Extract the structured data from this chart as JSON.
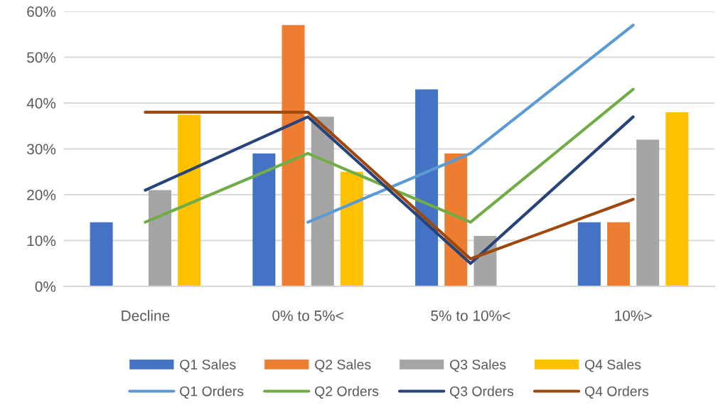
{
  "chart_data": {
    "type": "bar",
    "categories": [
      "Decline",
      "0% to 5%<",
      "5% to 10%<",
      "10%>"
    ],
    "series": [
      {
        "name": "Q1 Sales",
        "color": "#4472c4",
        "values": [
          14,
          29,
          43,
          14
        ]
      },
      {
        "name": "Q2 Sales",
        "color": "#ed7d31",
        "values": [
          0,
          57,
          29,
          14
        ]
      },
      {
        "name": "Q3 Sales",
        "color": "#a5a5a5",
        "values": [
          21,
          37,
          11,
          32
        ]
      },
      {
        "name": "Q4 Sales",
        "color": "#ffc000",
        "values": [
          37.5,
          25,
          0,
          38
        ]
      },
      {
        "name": "Q1 Orders",
        "type": "line",
        "color": "#5b9bd5",
        "values": [
          null,
          14,
          29,
          57
        ]
      },
      {
        "name": "Q2 Orders",
        "type": "line",
        "color": "#70ad47",
        "values": [
          14,
          29,
          14,
          43
        ]
      },
      {
        "name": "Q3 Orders",
        "type": "line",
        "color": "#264478",
        "values": [
          21,
          37,
          5,
          37
        ]
      },
      {
        "name": "Q4 Orders",
        "type": "line",
        "color": "#9e480e",
        "values": [
          38,
          38,
          6,
          19
        ]
      }
    ],
    "ylim": [
      0,
      60
    ],
    "yticks": [
      {
        "value": 0,
        "label": "0%"
      },
      {
        "value": 10,
        "label": "10%"
      },
      {
        "value": 20,
        "label": "20%"
      },
      {
        "value": 30,
        "label": "30%"
      },
      {
        "value": 40,
        "label": "40%"
      },
      {
        "value": 50,
        "label": "50%"
      },
      {
        "value": 60,
        "label": "60%"
      }
    ],
    "grid": "y",
    "legend": "bottom",
    "marker": "none",
    "line_style": "solid"
  }
}
